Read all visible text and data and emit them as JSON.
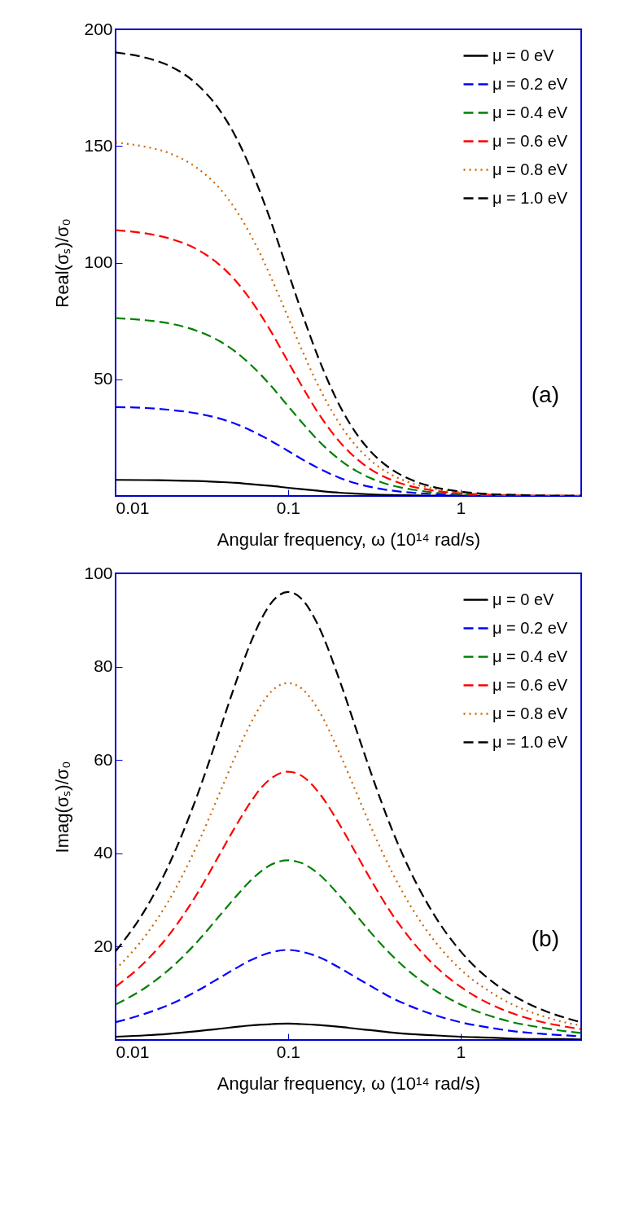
{
  "chart_data": [
    {
      "type": "line",
      "xlabel": "Angular frequency, ω (10¹⁴ rad/s)",
      "ylabel": "Real(σₛ)/σ₀",
      "log": "x",
      "xlim": [
        0.01,
        5
      ],
      "xticks": [
        0.01,
        0.1,
        1
      ],
      "ylim": [
        0,
        200
      ],
      "yticks": [
        50,
        100,
        150,
        200
      ],
      "legend": "top right",
      "grid": false,
      "annotations": [
        "(a)"
      ],
      "x": [
        0.01,
        0.015,
        0.02,
        0.03,
        0.04,
        0.05,
        0.06,
        0.07,
        0.08,
        0.1,
        0.12,
        0.15,
        0.2,
        0.25,
        0.3,
        0.4,
        0.5,
        0.7,
        1,
        1.5,
        2,
        3,
        4,
        5
      ],
      "series": [
        {
          "name": "μ = 0 eV",
          "color": "#000000",
          "line_style": "solid",
          "values": [
            6.9,
            6.8,
            6.7,
            6.4,
            6,
            5.6,
            5.1,
            4.7,
            4.3,
            3.5,
            2.9,
            2.2,
            1.4,
            1,
            0.7,
            0.4,
            0.3,
            0.1,
            0.1,
            0,
            0,
            0,
            0,
            0
          ]
        },
        {
          "name": "μ = 0.2 eV",
          "color": "#0000ff",
          "line_style": "dashed",
          "values": [
            38.1,
            37.7,
            37,
            35.3,
            33.2,
            30.8,
            28.3,
            25.8,
            23.5,
            19.3,
            15.8,
            11.9,
            7.7,
            5.3,
            3.9,
            2.3,
            1.5,
            0.8,
            0.4,
            0.2,
            null,
            null,
            null,
            null
          ]
        },
        {
          "name": "μ = 0.4 eV",
          "color": "#008000",
          "line_style": "dashed",
          "values": [
            76.2,
            75.3,
            74.1,
            70.6,
            66.4,
            61.6,
            56.6,
            51.7,
            47,
            38.5,
            31.6,
            23.7,
            15.4,
            10.6,
            7.7,
            4.5,
            3,
            1.5,
            0.8,
            0.3,
            0.2,
            null,
            null,
            null
          ]
        },
        {
          "name": "μ = 0.6 eV",
          "color": "#ff0000",
          "line_style": "dashed",
          "values": [
            113.9,
            112.5,
            110.6,
            105.5,
            99.1,
            92,
            84.5,
            77.2,
            70.2,
            57.5,
            47.2,
            35.4,
            23,
            15.9,
            11.5,
            6.8,
            4.4,
            2.3,
            1.1,
            0.5,
            0.3,
            0.1,
            0.1,
            0
          ]
        },
        {
          "name": "μ = 0.8 eV",
          "color": "#cc6600",
          "line_style": "dotted",
          "values": [
            151.5,
            149.6,
            147.2,
            140.3,
            131.9,
            122.4,
            112.5,
            102.7,
            93.3,
            76.5,
            62.7,
            47.1,
            30.6,
            21.1,
            15.3,
            9,
            5.9,
            3.1,
            1.5,
            0.7,
            0.4,
            0.2,
            0.1,
            0.1
          ]
        },
        {
          "name": "μ = 1.0 eV",
          "color": "#000000",
          "line_style": "dashed",
          "values": [
            190.1,
            187.8,
            184.7,
            176.1,
            165.5,
            153.6,
            141.1,
            128.8,
            117.1,
            96,
            78.7,
            59.1,
            38.4,
            26.5,
            19.2,
            11.3,
            7.4,
            3.8,
            1.9,
            0.8,
            0.5,
            0.2,
            0.1,
            0.1
          ]
        }
      ]
    },
    {
      "type": "line",
      "xlabel": "Angular frequency, ω (10¹⁴ rad/s)",
      "ylabel": "Imag(σₛ)/σ₀",
      "log": "x",
      "xlim": [
        0.01,
        5
      ],
      "xticks": [
        0.01,
        0.1,
        1
      ],
      "ylim": [
        0,
        100
      ],
      "yticks": [
        20,
        40,
        60,
        80,
        100
      ],
      "legend": "top right",
      "grid": false,
      "annotations": [
        "(b)"
      ],
      "x": [
        0.01,
        0.015,
        0.02,
        0.03,
        0.04,
        0.05,
        0.06,
        0.07,
        0.08,
        0.1,
        0.12,
        0.15,
        0.2,
        0.25,
        0.3,
        0.4,
        0.5,
        0.7,
        1,
        1.5,
        2,
        3,
        4,
        5
      ],
      "series": [
        {
          "name": "μ = 0 eV",
          "color": "#000000",
          "line_style": "solid",
          "values": [
            0.7,
            1,
            1.3,
            1.9,
            2.4,
            2.8,
            3.1,
            3.3,
            3.4,
            3.5,
            3.4,
            3.2,
            2.8,
            2.4,
            2.1,
            1.6,
            1.3,
            1,
            0.7,
            0.5,
            0.3,
            0.2,
            0.2,
            0.1
          ]
        },
        {
          "name": "μ = 0.2 eV",
          "color": "#0000ff",
          "line_style": "dashed",
          "values": [
            3.8,
            5.7,
            7.4,
            10.6,
            13.3,
            15.4,
            17,
            18.1,
            18.8,
            19.3,
            18.9,
            17.8,
            15.4,
            13.3,
            11.6,
            9,
            7.4,
            5.4,
            3.8,
            2.6,
            1.9,
            1.3,
            1,
            0.8
          ]
        },
        {
          "name": "μ = 0.4 eV",
          "color": "#008000",
          "line_style": "dashed",
          "values": [
            7.6,
            11.3,
            14.8,
            21.2,
            26.6,
            30.8,
            34,
            36.2,
            37.6,
            38.5,
            37.9,
            35.6,
            30.8,
            26.6,
            23.1,
            18.1,
            14.8,
            10.8,
            7.6,
            5.1,
            3.8,
            2.6,
            1.9,
            1.5
          ]
        },
        {
          "name": "μ = 0.6 eV",
          "color": "#ff0000",
          "line_style": "dashed",
          "values": [
            11.4,
            16.9,
            22.1,
            31.6,
            39.7,
            46,
            50.7,
            54.1,
            56.1,
            57.5,
            56.6,
            53.1,
            46,
            39.7,
            34.5,
            27,
            22.1,
            16.1,
            11.4,
            7.6,
            5.7,
            3.8,
            2.9,
            2.3
          ]
        },
        {
          "name": "μ = 0.8 eV",
          "color": "#cc6600",
          "line_style": "dotted",
          "values": [
            15.1,
            22.5,
            29.4,
            42.1,
            52.8,
            61.2,
            67.5,
            71.9,
            74.7,
            76.5,
            75.3,
            70.7,
            61.2,
            52.8,
            45.9,
            36,
            29.4,
            21.4,
            15.1,
            10.2,
            7.6,
            5.1,
            3.8,
            3.1
          ]
        },
        {
          "name": "μ = 1.0 eV",
          "color": "#000000",
          "line_style": "dashed",
          "values": [
            19,
            28.2,
            36.9,
            52.8,
            66.2,
            76.8,
            84.7,
            90.2,
            93.7,
            96,
            94.5,
            88.7,
            76.8,
            66.2,
            57.6,
            45.1,
            36.9,
            26.9,
            19,
            12.7,
            9.6,
            6.4,
            4.8,
            3.8
          ]
        }
      ]
    }
  ]
}
